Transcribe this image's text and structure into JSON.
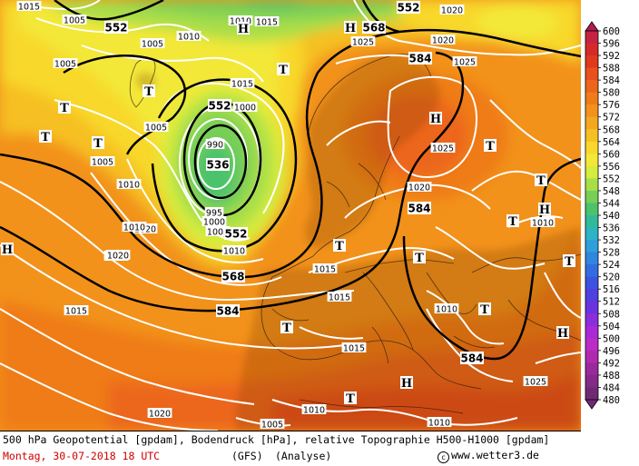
{
  "footer": {
    "line1": "500 hPa Geopotential [gpdam], Bodendruck [hPa], relative Topographie H500-H1000 [gpdam]",
    "date": "Montag, 30-07-2018  18 UTC",
    "model": "(GFS)",
    "analysis": "(Analyse)",
    "copyright": "www.wetter3.de",
    "copyright_symbol": "c"
  },
  "legend": {
    "levels": [
      "600",
      "596",
      "592",
      "588",
      "584",
      "580",
      "576",
      "572",
      "568",
      "564",
      "560",
      "556",
      "552",
      "548",
      "544",
      "540",
      "536",
      "532",
      "528",
      "524",
      "520",
      "516",
      "512",
      "508",
      "504",
      "500",
      "496",
      "492",
      "488",
      "484",
      "480"
    ],
    "colors": [
      "#b01a59",
      "#c4243f",
      "#d62a2a",
      "#e03a1e",
      "#e8501c",
      "#ec661a",
      "#ef7c19",
      "#f2921b",
      "#f4a81f",
      "#f6c024",
      "#f8d82c",
      "#f3e838",
      "#d6ec3e",
      "#a8de48",
      "#78cf56",
      "#4cc26c",
      "#32b99a",
      "#2cb3c4",
      "#2f9fd9",
      "#3086de",
      "#336ce0",
      "#3d52e0",
      "#4f40df",
      "#6a33de",
      "#8a2edc",
      "#a82ad6",
      "#bb2bc6",
      "#b02ab0",
      "#9a2a9c",
      "#852a88",
      "#702a74"
    ]
  },
  "geopotential_labels": [
    "552",
    "552",
    "568",
    "584",
    "552",
    "536",
    "552",
    "568",
    "584",
    "584",
    "584"
  ],
  "pressure_labels": [
    "1015",
    "1005",
    "1005",
    "1010",
    "1015",
    "1005",
    "1025",
    "1020",
    "1025",
    "1020",
    "1005",
    "1010",
    "1005",
    "1010",
    "1015",
    "1020",
    "1025",
    "1015",
    "1000",
    "990",
    "995",
    "1000",
    "1005",
    "1010",
    "1015",
    "1015",
    "1010",
    "1010",
    "1015",
    "1020",
    "1025",
    "1020",
    "1010",
    "1010",
    "1005",
    "1010",
    "1020",
    "1025"
  ],
  "pressure_systems": [
    "H",
    "H",
    "H",
    "T",
    "T",
    "T",
    "T",
    "T",
    "T",
    "T",
    "T",
    "H",
    "T",
    "T",
    "H",
    "H",
    "T",
    "T",
    "T",
    "H",
    "T"
  ],
  "colors": {
    "contour_black": "#000000",
    "isobar_white": "#ffffff",
    "date_red": "#d00000"
  }
}
